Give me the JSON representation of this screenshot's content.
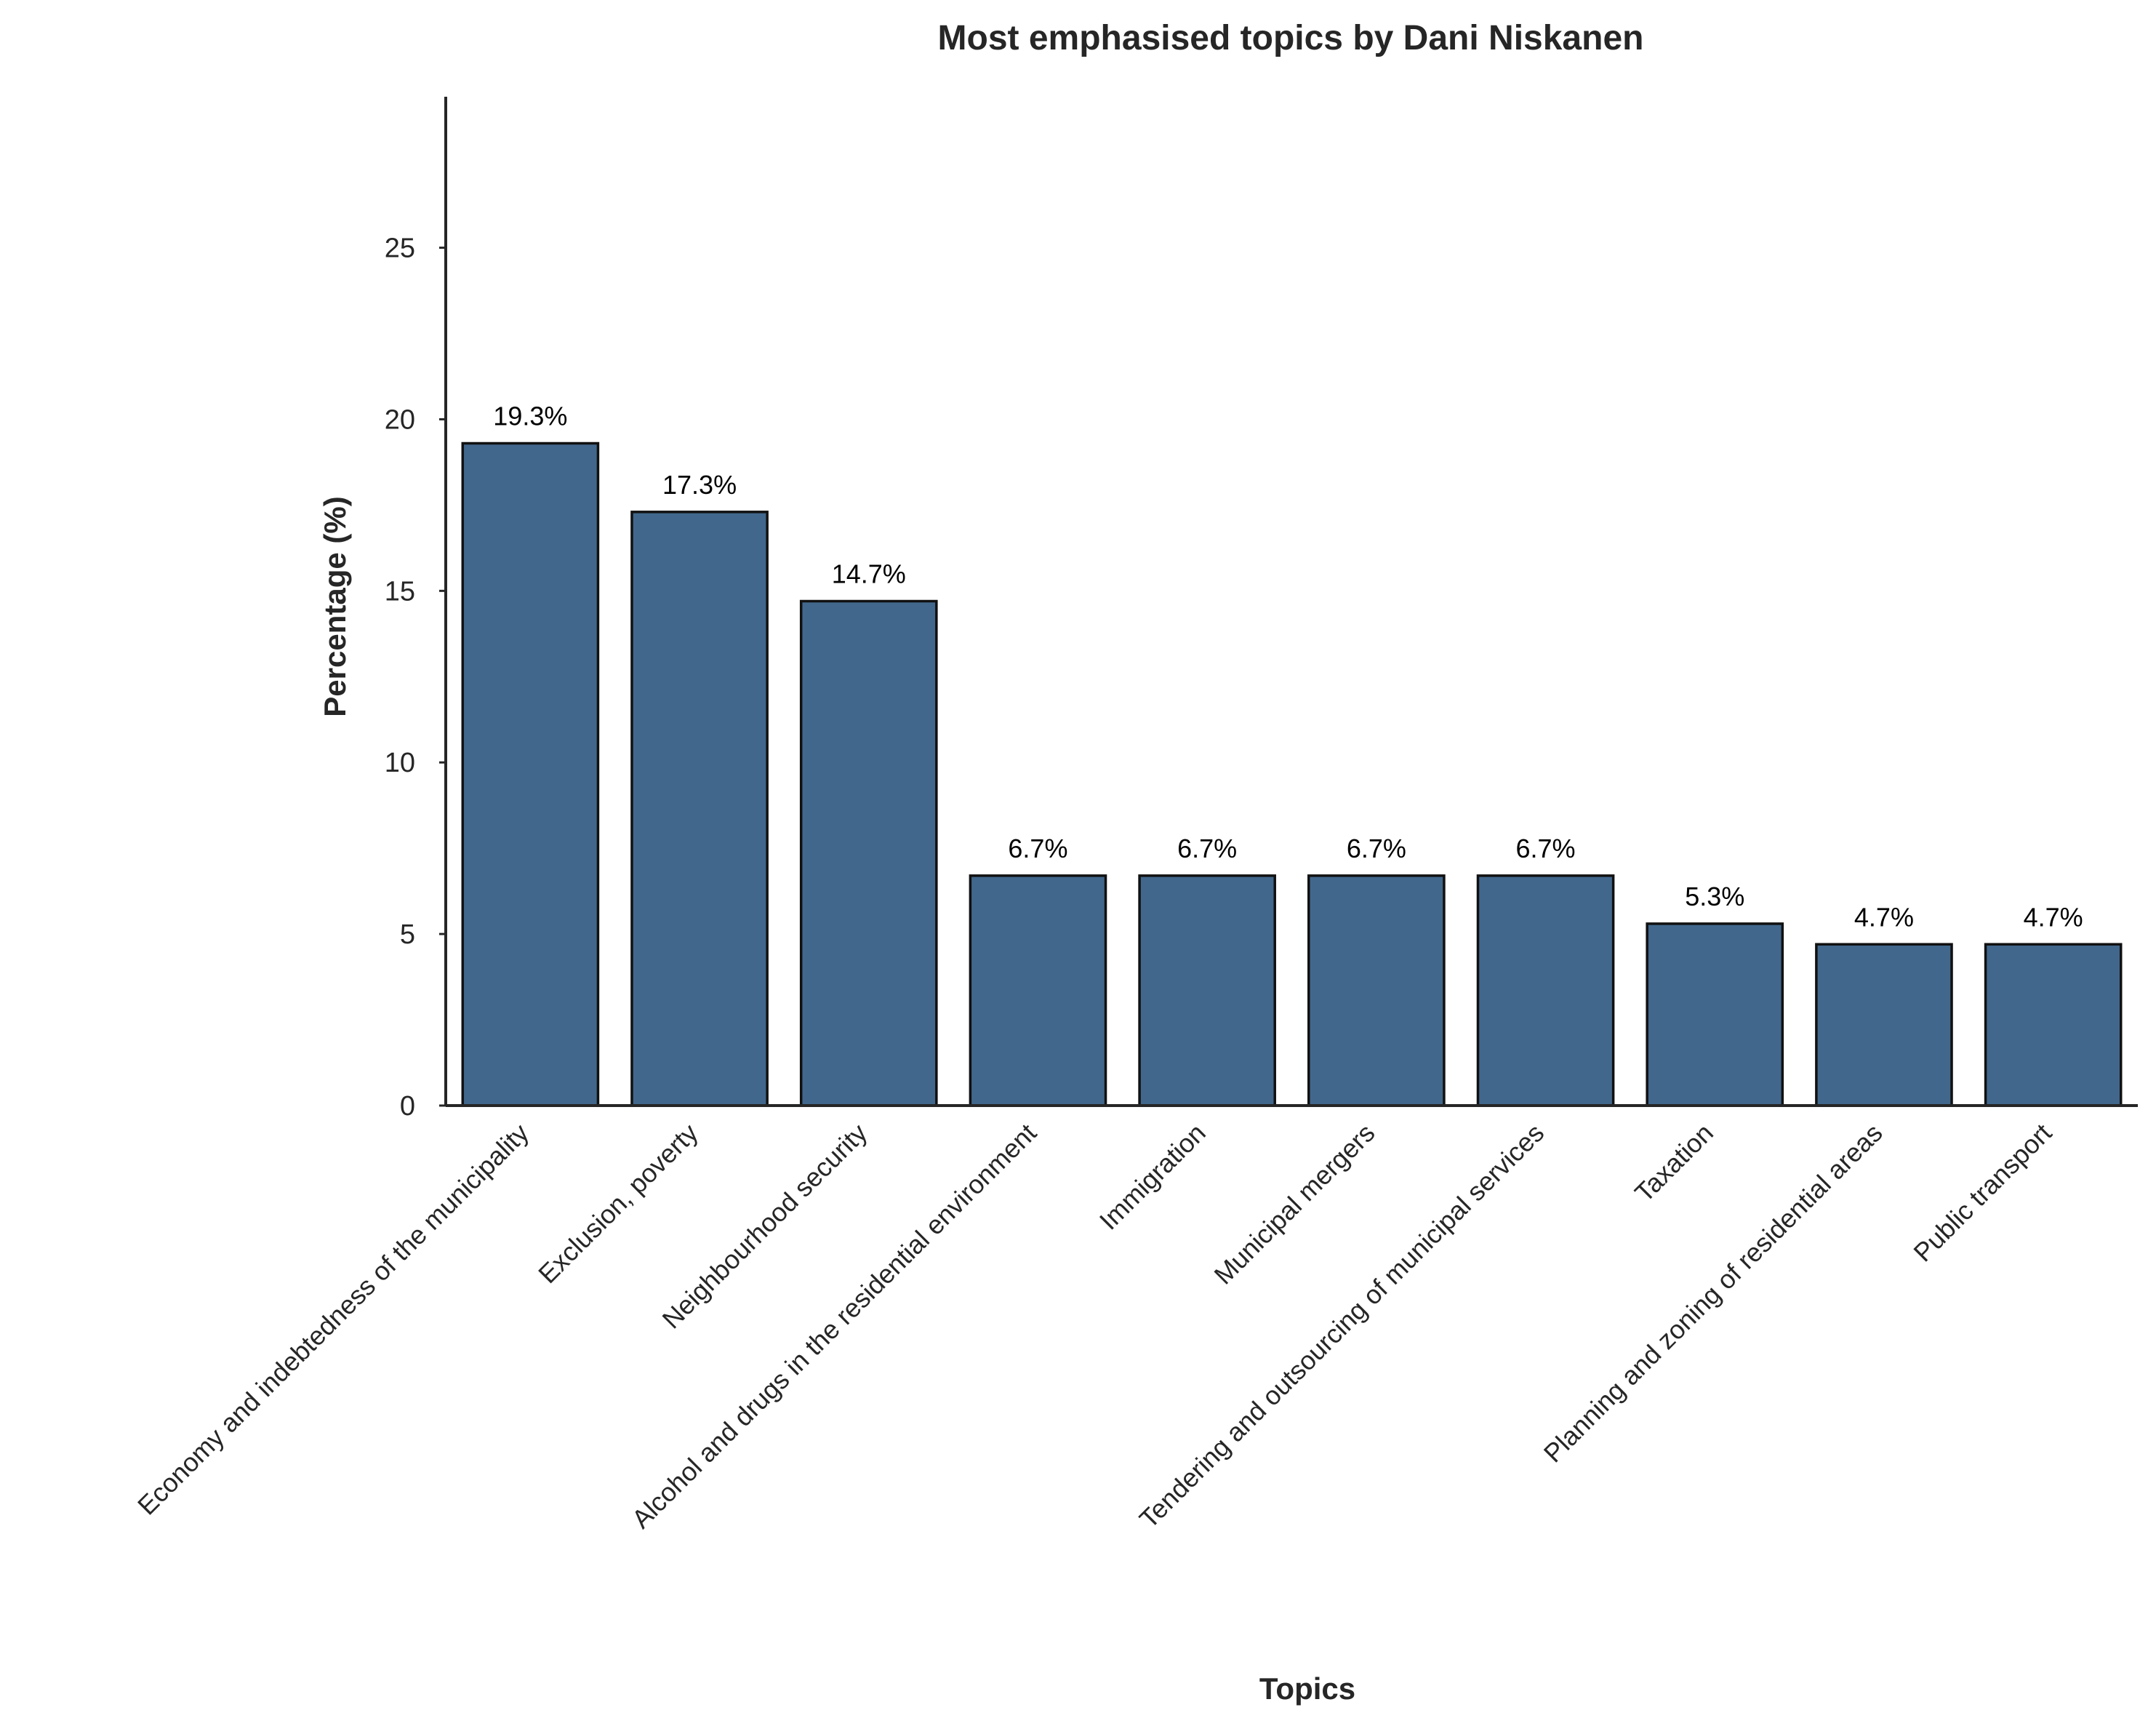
{
  "chart_data": {
    "type": "bar",
    "title": "Most emphasised topics by Dani Niskanen",
    "xlabel": "Topics",
    "ylabel": "Percentage (%)",
    "categories": [
      "Economy and indebtedness of the municipality",
      "Exclusion, poverty",
      "Neighbourhood security",
      "Alcohol and drugs in the residential environment",
      "Immigration",
      "Municipal mergers",
      "Tendering and outsourcing of municipal services",
      "Taxation",
      "Planning and zoning of residential areas",
      "Public transport"
    ],
    "values": [
      19.3,
      17.3,
      14.7,
      6.7,
      6.7,
      6.7,
      6.7,
      5.3,
      4.7,
      4.7
    ],
    "value_labels": [
      "19.3%",
      "17.3%",
      "14.7%",
      "6.7%",
      "6.7%",
      "6.7%",
      "6.7%",
      "5.3%",
      "4.7%",
      "4.7%"
    ],
    "yticks": [
      0,
      5,
      10,
      15,
      20,
      25
    ],
    "ytick_labels": [
      "0",
      "5",
      "10",
      "15",
      "20",
      "25"
    ],
    "ylim": [
      0,
      29.4
    ],
    "grid": false,
    "legend": "none",
    "colors": {
      "bar": "#41678c",
      "bar_edge": "#111111",
      "axis": "#262626"
    }
  }
}
